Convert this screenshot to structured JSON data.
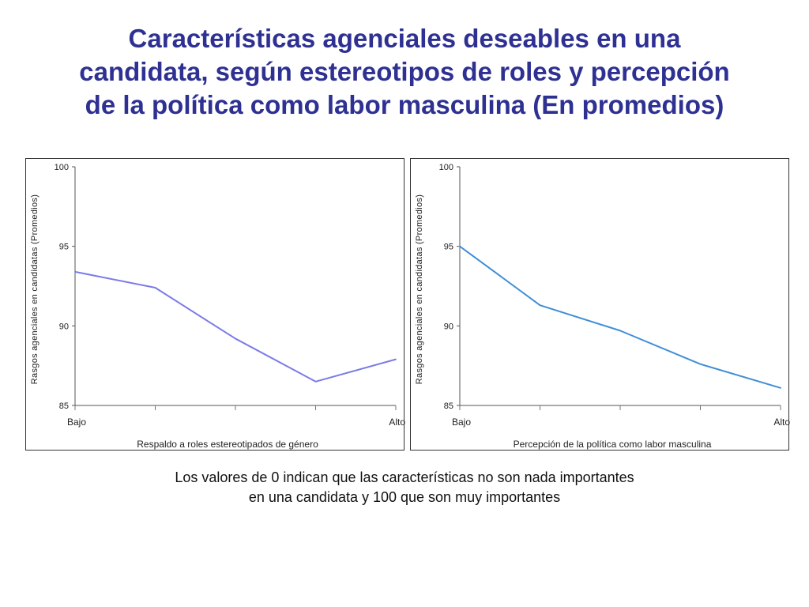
{
  "title": {
    "lines": [
      "Características agenciales deseables en una",
      "candidata, según estereotipos de roles y percepción",
      "de la política como labor masculina (En promedios)"
    ]
  },
  "colors": {
    "title": "#2E3192",
    "series_left": "#7B7BE8",
    "series_right": "#3F8ED8"
  },
  "chart_data": [
    {
      "type": "line",
      "title": "",
      "xlabel": "Respaldo a roles estereotipados de género",
      "ylabel": "Rasgos agenciales en candidatas (Promedios)",
      "ylim": [
        85,
        100
      ],
      "yticks": [
        85,
        90,
        95,
        100
      ],
      "x": [
        1,
        2,
        3,
        4,
        5
      ],
      "x_tick_labels": [
        "Bajo",
        "",
        "",
        "",
        "Alto"
      ],
      "series": [
        {
          "name": "Respaldo a roles estereotipados de género",
          "values": [
            93.4,
            92.4,
            89.2,
            86.5,
            87.9
          ]
        }
      ]
    },
    {
      "type": "line",
      "title": "",
      "xlabel": "Percepción de la política como labor masculina",
      "ylabel": "Rasgos agenciales en candidatas (Promedios)",
      "ylim": [
        85,
        100
      ],
      "yticks": [
        85,
        90,
        95,
        100
      ],
      "x": [
        1,
        2,
        3,
        4,
        5
      ],
      "x_tick_labels": [
        "Bajo",
        "",
        "",
        "",
        "Alto"
      ],
      "series": [
        {
          "name": "Percepción de la política como labor masculina",
          "values": [
            95.0,
            91.3,
            89.7,
            87.6,
            86.1
          ]
        }
      ]
    }
  ],
  "note": {
    "line1": "Los valores de 0 indican que las características no son nada importantes",
    "line2": "en una candidata y 100 que son muy importantes"
  }
}
